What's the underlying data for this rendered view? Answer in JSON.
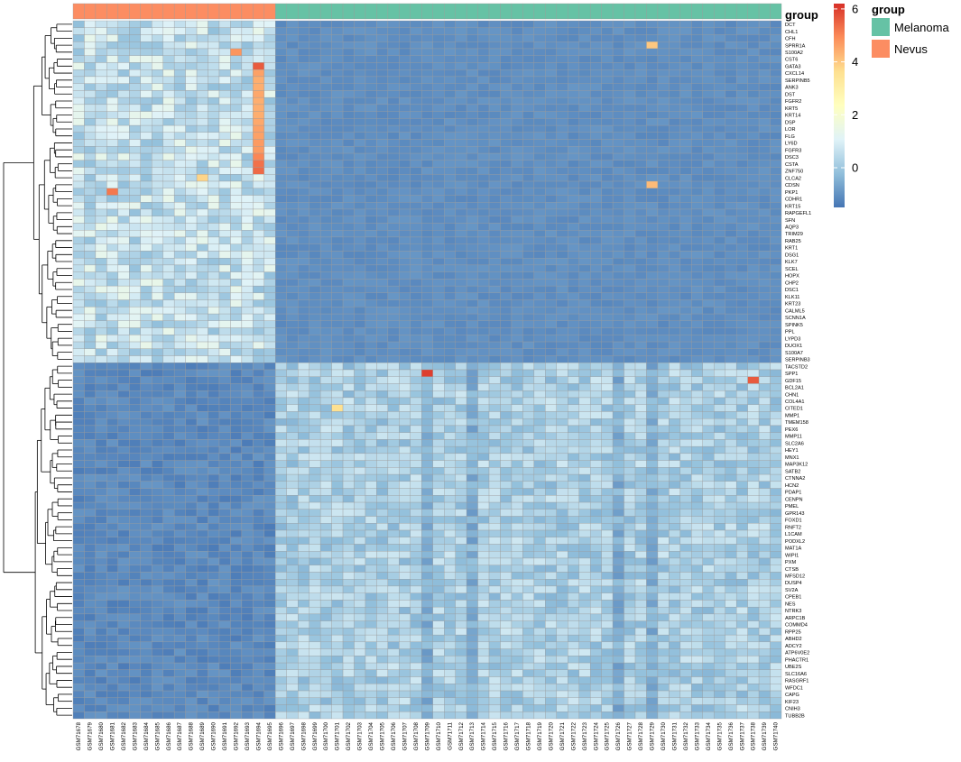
{
  "chart_data": {
    "type": "heatmap",
    "annotation_name": "group",
    "annotation_legend": {
      "title": "group",
      "items": [
        {
          "label": "Melanoma",
          "color": "#66c2a5"
        },
        {
          "label": "Nevus",
          "color": "#fc8d62"
        }
      ]
    },
    "color_scale": {
      "colors": [
        "#4575b4",
        "#91bfdb",
        "#e0f3f8",
        "#ffffbf",
        "#fee090",
        "#fc8d59",
        "#d73027"
      ],
      "ticks": [
        0,
        2,
        4,
        6
      ],
      "tick_labels": [
        "0",
        "2",
        "4",
        "6"
      ],
      "range": [
        -1.5,
        6.2
      ]
    },
    "samples": [
      "GSM71678",
      "GSM71679",
      "GSM71680",
      "GSM71681",
      "GSM71682",
      "GSM71683",
      "GSM71684",
      "GSM71685",
      "GSM71686",
      "GSM71687",
      "GSM71688",
      "GSM71689",
      "GSM71690",
      "GSM71691",
      "GSM71692",
      "GSM71693",
      "GSM71694",
      "GSM71695",
      "GSM71696",
      "GSM71697",
      "GSM71698",
      "GSM71699",
      "GSM71700",
      "GSM71701",
      "GSM71702",
      "GSM71703",
      "GSM71704",
      "GSM71705",
      "GSM71706",
      "GSM71707",
      "GSM71708",
      "GSM71709",
      "GSM71710",
      "GSM71711",
      "GSM71712",
      "GSM71713",
      "GSM71714",
      "GSM71715",
      "GSM71716",
      "GSM71717",
      "GSM71718",
      "GSM71719",
      "GSM71720",
      "GSM71721",
      "GSM71722",
      "GSM71723",
      "GSM71724",
      "GSM71725",
      "GSM71726",
      "GSM71727",
      "GSM71728",
      "GSM71729",
      "GSM71730",
      "GSM71731",
      "GSM71732",
      "GSM71733",
      "GSM71734",
      "GSM71735",
      "GSM71736",
      "GSM71737",
      "GSM71738",
      "GSM71739",
      "GSM71740"
    ],
    "sample_groups": [
      "Nevus",
      "Nevus",
      "Nevus",
      "Nevus",
      "Nevus",
      "Nevus",
      "Nevus",
      "Nevus",
      "Nevus",
      "Nevus",
      "Nevus",
      "Nevus",
      "Nevus",
      "Nevus",
      "Nevus",
      "Nevus",
      "Nevus",
      "Nevus",
      "Melanoma",
      "Melanoma",
      "Melanoma",
      "Melanoma",
      "Melanoma",
      "Melanoma",
      "Melanoma",
      "Melanoma",
      "Melanoma",
      "Melanoma",
      "Melanoma",
      "Melanoma",
      "Melanoma",
      "Melanoma",
      "Melanoma",
      "Melanoma",
      "Melanoma",
      "Melanoma",
      "Melanoma",
      "Melanoma",
      "Melanoma",
      "Melanoma",
      "Melanoma",
      "Melanoma",
      "Melanoma",
      "Melanoma",
      "Melanoma",
      "Melanoma",
      "Melanoma",
      "Melanoma",
      "Melanoma",
      "Melanoma",
      "Melanoma",
      "Melanoma",
      "Melanoma",
      "Melanoma",
      "Melanoma",
      "Melanoma",
      "Melanoma",
      "Melanoma",
      "Melanoma",
      "Melanoma",
      "Melanoma",
      "Melanoma",
      "Melanoma"
    ],
    "genes": [
      "DCT",
      "CHL1",
      "CFH",
      "SPRR1A",
      "S100A2",
      "CST6",
      "GATA3",
      "CXCL14",
      "SERPINB5",
      "ANK3",
      "DST",
      "FGFR2",
      "KRT5",
      "KRT14",
      "DSP",
      "LOR",
      "FLG",
      "LY6D",
      "FGFR3",
      "DSC3",
      "CSTA",
      "ZNF750",
      "CLCA2",
      "CDSN",
      "PKP1",
      "CDHR1",
      "KRT15",
      "RAPGEFL1",
      "SFN",
      "AQP3",
      "TRIM29",
      "RAB25",
      "KRT1",
      "DSG1",
      "KLK7",
      "SCEL",
      "HOPX",
      "CHP2",
      "DSC1",
      "KLK11",
      "KRT23",
      "CALML5",
      "SCNN1A",
      "SPINK5",
      "PPL",
      "LYPD3",
      "DUOX1",
      "S100A7",
      "SERPINB3",
      "TACSTD2",
      "SPP1",
      "GDF15",
      "BCL2A1",
      "CHN1",
      "COL4A1",
      "CITED1",
      "MMP1",
      "TMEM158",
      "PEX6",
      "MMP11",
      "SLC2A6",
      "HEY1",
      "MNX1",
      "MAP3K12",
      "SATB2",
      "CTNNA2",
      "HCN2",
      "PDAP1",
      "CENPN",
      "PMEL",
      "GPR143",
      "FOXD1",
      "RNFT2",
      "L1CAM",
      "PODXL2",
      "MAT1A",
      "WIPI1",
      "PXM",
      "CTSB",
      "MFSD12",
      "DUSP4",
      "SV2A",
      "CPEB1",
      "NES",
      "NTRK3",
      "ARPC1B",
      "COMMD4",
      "RPP25",
      "ABHD2",
      "ADCY2",
      "ATP6V0E2",
      "PHACTR1",
      "UBE2S",
      "SLC16A6",
      "RASGRF1",
      "WFDC1",
      "CAPG",
      "KIF23",
      "CNIH3",
      "TUBB2B"
    ],
    "nevus_up_gene_count": 49,
    "high_values": [
      {
        "gene": "GATA3",
        "sample": "GSM71694",
        "value": 5.6
      },
      {
        "gene": "CXCL14",
        "sample": "GSM71694",
        "value": 4.6
      },
      {
        "gene": "SERPINB5",
        "sample": "GSM71694",
        "value": 4.4
      },
      {
        "gene": "ANK3",
        "sample": "GSM71694",
        "value": 4.4
      },
      {
        "gene": "DST",
        "sample": "GSM71694",
        "value": 4.5
      },
      {
        "gene": "FGFR2",
        "sample": "GSM71694",
        "value": 4.4
      },
      {
        "gene": "KRT5",
        "sample": "GSM71694",
        "value": 4.4
      },
      {
        "gene": "KRT14",
        "sample": "GSM71694",
        "value": 4.4
      },
      {
        "gene": "DSP",
        "sample": "GSM71694",
        "value": 4.5
      },
      {
        "gene": "LOR",
        "sample": "GSM71694",
        "value": 4.6
      },
      {
        "gene": "FLG",
        "sample": "GSM71694",
        "value": 4.6
      },
      {
        "gene": "LY6D",
        "sample": "GSM71694",
        "value": 4.7
      },
      {
        "gene": "FGFR3",
        "sample": "GSM71694",
        "value": 4.7
      },
      {
        "gene": "DSC3",
        "sample": "GSM71694",
        "value": 5.0
      },
      {
        "gene": "CSTA",
        "sample": "GSM71694",
        "value": 5.3
      },
      {
        "gene": "ZNF750",
        "sample": "GSM71694",
        "value": 5.4
      },
      {
        "gene": "S100A2",
        "sample": "GSM71692",
        "value": 4.8
      },
      {
        "gene": "PKP1",
        "sample": "GSM71681",
        "value": 5.2
      },
      {
        "gene": "CLCA2",
        "sample": "GSM71689",
        "value": 3.8
      },
      {
        "gene": "SPRR1A",
        "sample": "GSM71729",
        "value": 4.0
      },
      {
        "gene": "CDSN",
        "sample": "GSM71729",
        "value": 4.2
      },
      {
        "gene": "SPP1",
        "sample": "GSM71709",
        "value": 6.0
      },
      {
        "gene": "GDF15",
        "sample": "GSM71738",
        "value": 5.6
      },
      {
        "gene": "CITED1",
        "sample": "GSM71701",
        "value": 3.6
      }
    ]
  }
}
